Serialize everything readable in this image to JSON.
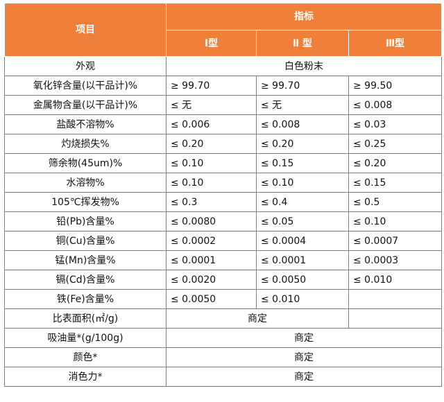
{
  "table": {
    "header": {
      "item": "项目",
      "index": "指标",
      "types": [
        "Ⅰ型",
        "Ⅱ 型",
        "Ⅲ型"
      ]
    },
    "rows": [
      {
        "name": "外观",
        "merged": "白色粉末"
      },
      {
        "name": "氧化锌含量(以干品计)%",
        "values": [
          "≥ 99.70",
          "≥ 99.70",
          "≥ 99.50"
        ]
      },
      {
        "name": "金属物含量(以干品计)%",
        "values": [
          "≤ 无",
          "≤ 无",
          "≤ 0.008"
        ]
      },
      {
        "name": "盐酸不溶物%",
        "values": [
          "≤ 0.006",
          "≤ 0.008",
          "≤ 0.03"
        ]
      },
      {
        "name": "灼烧损失%",
        "values": [
          "≤ 0.20",
          "≤ 0.20",
          "≤ 0.25"
        ]
      },
      {
        "name": "筛余物(45um)%",
        "values": [
          "≤ 0.10",
          "≤ 0.15",
          "≤ 0.20"
        ]
      },
      {
        "name": "水溶物%",
        "values": [
          "≤ 0.10",
          "≤ 0.10",
          "≤ 0.15"
        ]
      },
      {
        "name": "105℃挥发物%",
        "values": [
          "≤ 0.3",
          "≤ 0.4",
          "≤ 0.5"
        ]
      },
      {
        "name": "铅(Pb)含量%",
        "values": [
          "≤ 0.0080",
          "≤ 0.05",
          "≤ 0.10"
        ]
      },
      {
        "name": "铜(Cu)含量%",
        "values": [
          "≤ 0.0002",
          "≤ 0.0004",
          "≤ 0.0007"
        ]
      },
      {
        "name": "锰(Mn)含量%",
        "values": [
          "≤ 0.0001",
          "≤ 0.0001",
          "≤ 0.0003"
        ]
      },
      {
        "name": "镉(Cd)含量%",
        "values": [
          "≤ 0.0020",
          "≤ 0.0050",
          "≤ 0.010"
        ]
      },
      {
        "name": "铁(Fe)含量%",
        "values": [
          "≤ 0.0050",
          "≤ 0.010",
          ""
        ]
      },
      {
        "name": "比表面积(㎡/g)",
        "merged2": "商定",
        "last": ""
      },
      {
        "name": "吸油量*(g/100g)",
        "merged": "商定"
      },
      {
        "name": "颜色*",
        "merged": "商定"
      },
      {
        "name": "消色力*",
        "merged": "商定"
      }
    ]
  }
}
